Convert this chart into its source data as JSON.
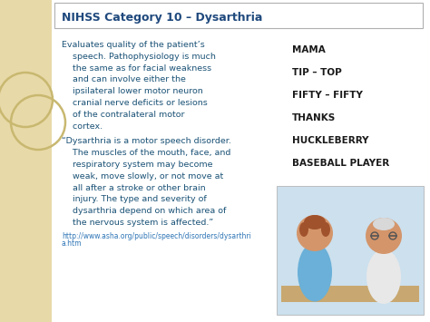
{
  "title": "NIHSS Category 10 – Dysarthria",
  "title_color": "#1F497D",
  "bg_color": "#f0e6c8",
  "side_strip_color": "#e8d9a8",
  "main_bg": "#ffffff",
  "body_text_color": "#1a5276",
  "link_color": "#2e75b6",
  "word_list_color": "#1a1a1a",
  "word_list": [
    "MAMA",
    "TIP – TOP",
    "FIFTY – FIFTY",
    "THANKS",
    "HUCKLEBERRY",
    "BASEBALL PLAYER"
  ],
  "body_lines": [
    "Evaluates quality of the patient’s",
    "    speech. Pathophysiology is much",
    "    the same as for facial weakness",
    "    and can involve either the",
    "    ipsilateral lower motor neuron",
    "    cranial nerve deficits or lesions",
    "    of the contralateral motor",
    "    cortex."
  ],
  "quote_lines": [
    "“Dysarthria is a motor speech disorder.",
    "    The muscles of the mouth, face, and",
    "    respiratory system may become",
    "    weak, move slowly, or not move at",
    "    all after a stroke or other brain",
    "    injury. The type and severity of",
    "    dysarthria depend on which area of",
    "    the nervous system is affected.”"
  ],
  "link_line1": "http://www.asha.org/public/speech/disorders/dysarthri",
  "link_line2": "a.htm",
  "circle_color": "#c8b870",
  "img_bg": "#cce0ee",
  "img_table": "#c8a870",
  "skin_color": "#d4956a",
  "nurse_body": "#6ab0d8",
  "patient_body": "#e8e8e8",
  "hair_brown": "#a0522d",
  "hair_white": "#d8d8d8"
}
